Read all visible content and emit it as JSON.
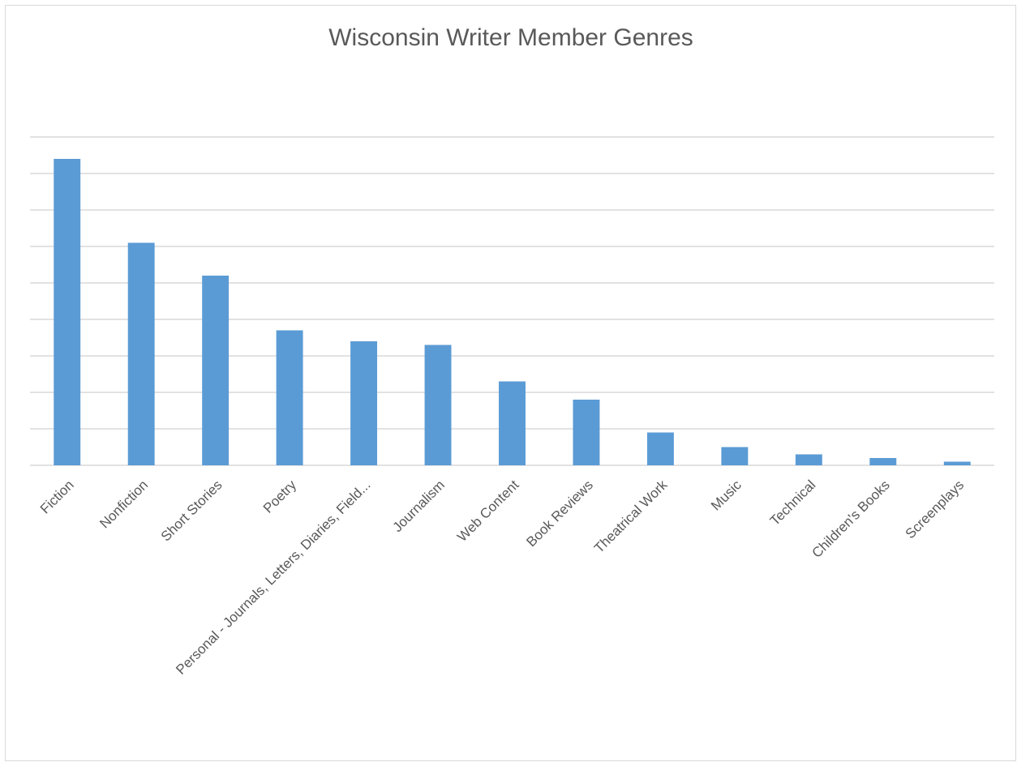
{
  "chart_data": {
    "type": "bar",
    "title": "Wisconsin Writer Member Genres",
    "categories": [
      "Fiction",
      "Nonfiction",
      "Short Stories",
      "Poetry",
      "Personal - Journals, Letters, Diaries, Field...",
      "Journalism",
      "Web Content",
      "Book Reviews",
      "Theatrical Work",
      "Music",
      "Technical",
      "Children's Books",
      "Screenplays"
    ],
    "values": [
      8.4,
      6.1,
      5.2,
      3.7,
      3.4,
      3.3,
      2.3,
      1.8,
      0.9,
      0.5,
      0.3,
      0.2,
      0.1
    ],
    "color": "#5b9bd5",
    "ylim": [
      0,
      9
    ],
    "yticks": [
      0,
      1,
      2,
      3,
      4,
      5,
      6,
      7,
      8,
      9
    ],
    "show_tick_labels": false,
    "grid": true
  }
}
